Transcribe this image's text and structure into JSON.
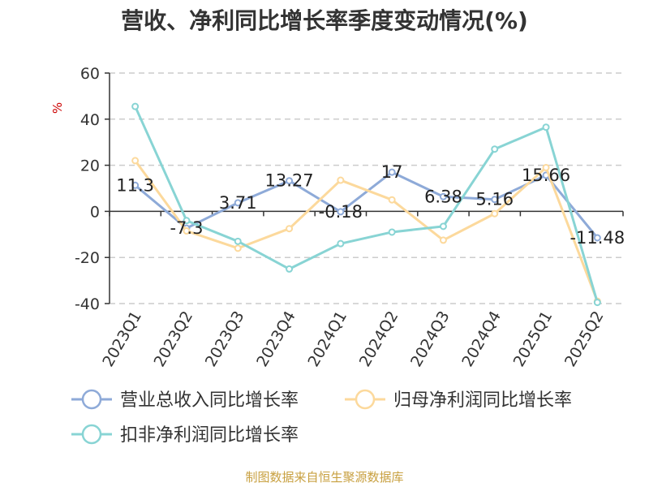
{
  "chart_data": {
    "type": "line",
    "title": "营收、净利同比增长率季度变动情况(%)",
    "ylabel": "%",
    "categories": [
      "2023Q1",
      "2023Q2",
      "2023Q3",
      "2023Q4",
      "2024Q1",
      "2024Q2",
      "2024Q3",
      "2024Q4",
      "2025Q1",
      "2025Q2"
    ],
    "ylim": [
      -40,
      60
    ],
    "yticks": [
      -40,
      -20,
      0,
      20,
      40,
      60
    ],
    "grid": true,
    "legend_position": "bottom",
    "series": [
      {
        "name": "营业总收入同比增长率",
        "color": "#8eaad8",
        "values": [
          11.3,
          -7.3,
          3.71,
          13.27,
          -0.18,
          17,
          6.38,
          5.16,
          15.66,
          -11.48
        ],
        "labels": [
          "11.3",
          "-7.3",
          "3.71",
          "13.27",
          "-0.18",
          "17",
          "6.38",
          "5.16",
          "15.66",
          "-11.48"
        ]
      },
      {
        "name": "归母净利润同比增长率",
        "color": "#fcd99c",
        "values": [
          22,
          -8.5,
          -16,
          -7.5,
          13.5,
          5,
          -12.5,
          -1,
          19,
          -39
        ]
      },
      {
        "name": "扣非净利润同比增长率",
        "color": "#88d4d4",
        "values": [
          45.5,
          -4,
          -13,
          -25,
          -14,
          -9,
          -6.5,
          27,
          36.5,
          -39.5
        ]
      }
    ],
    "source": "制图数据来自恒生聚源数据库",
    "source_color": "#c8a040"
  }
}
